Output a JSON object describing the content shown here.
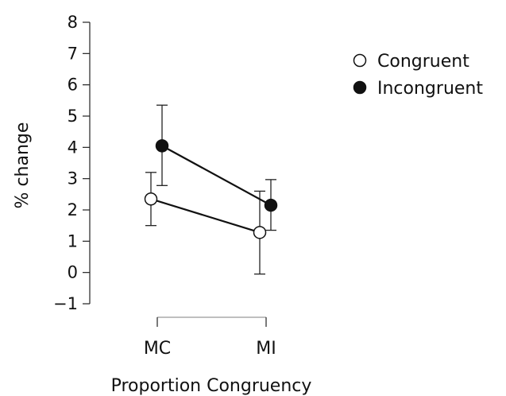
{
  "chart_data": {
    "type": "line",
    "xlabel": "Proportion Congruency",
    "ylabel": "% change",
    "categories": [
      "MC",
      "MI"
    ],
    "ylim": [
      -1,
      8
    ],
    "yticks": [
      "8",
      "7",
      "6",
      "5",
      "4",
      "3",
      "2",
      "1",
      "0",
      "−1"
    ],
    "ytick_values": [
      8,
      7,
      6,
      5,
      4,
      3,
      2,
      1,
      0,
      -1
    ],
    "grid": false,
    "legend_placement": "top-right",
    "series": [
      {
        "name": "Congruent",
        "marker": "open-circle",
        "color": "#111111",
        "fill": "#ffffff",
        "values": [
          2.35,
          1.28
        ],
        "err_low": [
          1.5,
          -0.05
        ],
        "err_high": [
          3.2,
          2.6
        ]
      },
      {
        "name": "Incongruent",
        "marker": "filled-circle",
        "color": "#111111",
        "fill": "#111111",
        "values": [
          4.05,
          2.15
        ],
        "err_low": [
          2.78,
          1.35
        ],
        "err_high": [
          5.35,
          2.97
        ]
      }
    ]
  }
}
